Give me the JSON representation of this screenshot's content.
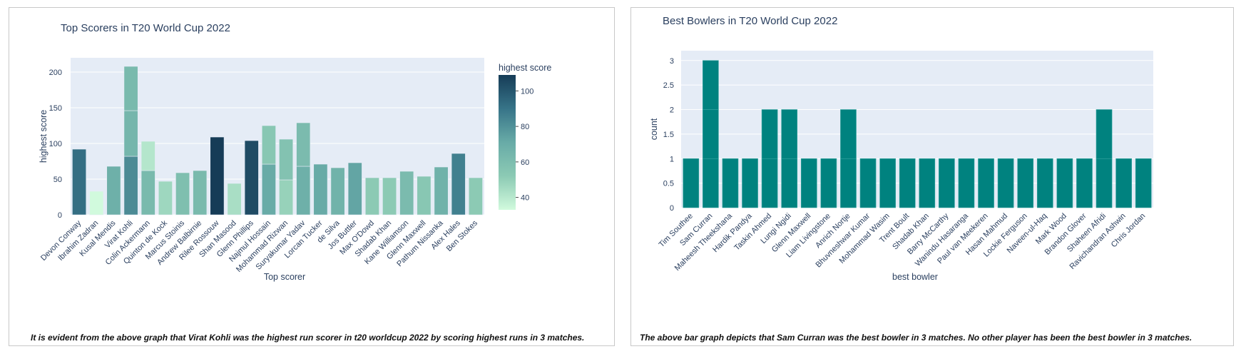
{
  "chart_data": [
    {
      "type": "bar",
      "title": "Top Scorers in T20 World Cup 2022",
      "xlabel": "Top scorer",
      "ylabel": "highest score",
      "ylim": [
        0,
        220
      ],
      "yticks": [
        0,
        50,
        100,
        150,
        200
      ],
      "colorbar": {
        "title": "highest score",
        "ticks": [
          40,
          60,
          80,
          100
        ],
        "range": [
          33,
          109
        ]
      },
      "categories": [
        "Devon Conway",
        "Ibrahim Zadran",
        "Kusal Mendis",
        "Virat Kohli",
        "Colin Ackermann",
        "Quinton de Kock",
        "Marcus Stoinis",
        "Andrew Balbirnie",
        "Rilee Rossouw",
        "Shan Masood",
        "Glenn Phillips",
        "Najmul Hossain",
        "Mohammad Rizwan",
        "Suryakumar Yadav",
        "Lorcan Tucker",
        "de Silva",
        "Jos Buttler",
        "Max O'Dowd",
        "Shadab Khan",
        "Kane Williamson",
        "Glenn Maxwell",
        "Pathum Nissanka",
        "Alex Hales",
        "Ben Stokes"
      ],
      "stacks": [
        [
          92
        ],
        [
          33
        ],
        [
          68
        ],
        [
          82,
          64,
          62
        ],
        [
          62,
          41
        ],
        [
          47
        ],
        [
          59
        ],
        [
          62
        ],
        [
          109
        ],
        [
          44
        ],
        [
          104
        ],
        [
          71,
          54
        ],
        [
          49,
          57
        ],
        [
          68,
          61
        ],
        [
          71
        ],
        [
          66
        ],
        [
          73
        ],
        [
          52
        ],
        [
          52
        ],
        [
          61
        ],
        [
          54
        ],
        [
          67
        ],
        [
          86
        ],
        [
          52
        ]
      ],
      "caption": "It is evident from the above graph that Virat Kohli was the highest run scorer in t20 worldcup 2022 by scoring highest runs in 3 matches."
    },
    {
      "type": "bar",
      "title": "Best Bowlers in T20 World Cup 2022",
      "xlabel": "best bowler",
      "ylabel": "count",
      "ylim": [
        0,
        3.2
      ],
      "yticks": [
        "0",
        "0.5",
        "1",
        "1.5",
        "2",
        "2.5",
        "3"
      ],
      "color": "#00827f",
      "categories": [
        "Tim Southee",
        "Sam Curran",
        "Maheesh Theekshana",
        "Hardik Pandya",
        "Taskin Ahmed",
        "Lungi Ngidi",
        "Glenn Maxwell",
        "Liam Livingstone",
        "Anrich Nortje",
        "Bhuvneshwar Kumar",
        "Mohammad Wasim",
        "Trent Boult",
        "Shadab Khan",
        "Barry McCarthy",
        "Wanindu Hasaranga",
        "Paul van Meekeren",
        "Hasan Mahmud",
        "Lockie Ferguson",
        "Naveen-ul-Haq",
        "Mark Wood",
        "Brandon Glover",
        "Shaheen Afridi",
        "Ravichandran Ashwin",
        "Chris Jordan"
      ],
      "values": [
        1,
        3,
        1,
        1,
        2,
        2,
        1,
        1,
        2,
        1,
        1,
        1,
        1,
        1,
        1,
        1,
        1,
        1,
        1,
        1,
        1,
        2,
        1,
        1
      ],
      "caption": "The above bar graph depicts that Sam Curran was the best bowler in 3 matches. No other player has been the best bowler in 3 matches."
    }
  ]
}
